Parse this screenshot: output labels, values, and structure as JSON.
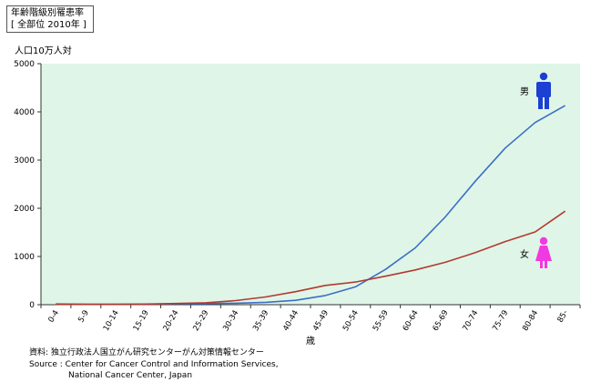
{
  "title_line1": "年齢階級別罹患率",
  "title_line2": "[ 全部位 2010年 ]",
  "y_unit": "人口10万人対",
  "credits": {
    "line1": "資料:  独立行政法人国立がん研究センターがん対策情報センター",
    "line2": "Source : Center for Cancer Control and Information Services,",
    "line3": "National Cancer Center, Japan"
  },
  "chart_data": {
    "type": "line",
    "categories": [
      "0-4",
      "5-9",
      "10-14",
      "15-19",
      "20-24",
      "25-29",
      "30-34",
      "35-39",
      "40-44",
      "45-49",
      "50-54",
      "55-59",
      "60-64",
      "65-69",
      "70-74",
      "75-79",
      "80-84",
      "85-"
    ],
    "x_unit_label": "歳",
    "ylim": [
      0,
      5000
    ],
    "yticks": [
      0,
      1000,
      2000,
      3000,
      4000,
      5000
    ],
    "grid": false,
    "background": "#dff5e8",
    "series": [
      {
        "name": "男",
        "color": "#3b6fc4",
        "icon_color": "#1c3fd4",
        "values": [
          15,
          10,
          10,
          12,
          18,
          22,
          30,
          50,
          90,
          190,
          370,
          730,
          1180,
          1820,
          2560,
          3250,
          3780,
          4130
        ]
      },
      {
        "name": "女",
        "color": "#b33a2f",
        "icon_color": "#f238e0",
        "values": [
          12,
          8,
          9,
          14,
          25,
          40,
          85,
          160,
          270,
          400,
          470,
          590,
          720,
          880,
          1080,
          1310,
          1510,
          1940
        ]
      }
    ]
  }
}
